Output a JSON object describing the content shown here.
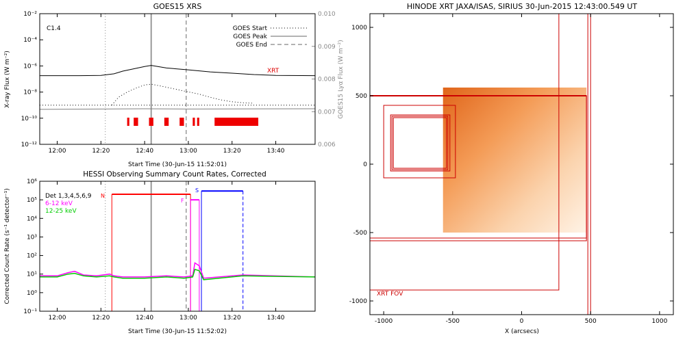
{
  "chart_data": [
    {
      "id": "goes",
      "type": "line",
      "title": "GOES15 XRS",
      "xlabel": "Start Time (30-Jun-15 11:52:01)",
      "ylabel": "X-ray Flux (W m⁻²)",
      "y2label": "GOES15 Lyα Flux (W m⁻²)",
      "xlim": [
        "11:52",
        "13:58"
      ],
      "ylim": [
        1e-12,
        0.01
      ],
      "yscale": "log",
      "y2lim": [
        0.006,
        0.01
      ],
      "xticks": [
        "12:00",
        "12:20",
        "12:40",
        "13:00",
        "13:20",
        "13:40"
      ],
      "yticks": [
        "10⁻¹²",
        "10⁻¹⁰",
        "10⁻⁸",
        "10⁻⁶",
        "10⁻⁴",
        "10⁻²"
      ],
      "y2ticks": [
        "0.006",
        "0.007",
        "0.008",
        "0.009",
        "0.010"
      ],
      "flare_class": "C1.4",
      "legend": [
        {
          "label": "GOES Start",
          "style": "dotted"
        },
        {
          "label": "GOES Peak",
          "style": "solid"
        },
        {
          "label": "GOES End",
          "style": "dashed"
        }
      ],
      "event_times": {
        "start": "12:22",
        "peak": "12:43",
        "end": "12:59"
      },
      "xrt_label": "XRT",
      "series": [
        {
          "name": "",
          "color": "#000000",
          "style": "solid",
          "x": [
            "11:52",
            "12:10",
            "12:20",
            "12:26",
            "12:30",
            "12:35",
            "12:40",
            "12:43",
            "12:46",
            "12:50",
            "13:00",
            "13:10",
            "13:20",
            "13:30",
            "13:40",
            "13:58"
          ],
          "values": [
            1.8e-07,
            1.8e-07,
            1.9e-07,
            2.5e-07,
            4e-07,
            6e-07,
            9e-07,
            1.1e-06,
            9e-07,
            7e-07,
            5e-07,
            3.5e-07,
            2.8e-07,
            2.2e-07,
            1.9e-07,
            1.8e-07
          ]
        },
        {
          "name": "",
          "color": "#000000",
          "style": "dotted",
          "x": [
            "12:25",
            "12:28",
            "12:32",
            "12:36",
            "12:40",
            "12:43",
            "12:47",
            "12:52",
            "12:58",
            "13:05",
            "13:10",
            "13:15",
            "13:20",
            "13:25",
            "13:30"
          ],
          "values": [
            1e-09,
            4e-09,
            1e-08,
            2e-08,
            3.5e-08,
            4e-08,
            3e-08,
            2e-08,
            1.2e-08,
            7e-09,
            4e-09,
            2.5e-09,
            1.8e-09,
            1.5e-09,
            1.4e-09
          ]
        },
        {
          "name": "",
          "color": "#000000",
          "style": "dotted",
          "x": [
            "11:52",
            "13:58"
          ],
          "values": [
            1e-09,
            1e-09
          ]
        },
        {
          "name": "",
          "color": "#808080",
          "style": "solid",
          "x": [
            "11:52",
            "12:40",
            "13:00",
            "13:58"
          ],
          "values": [
            0.00707,
            0.00709,
            0.00708,
            0.00709
          ]
        }
      ],
      "xrt_ranges": [
        [
          "12:32",
          "12:33"
        ],
        [
          "12:35",
          "12:37"
        ],
        [
          "12:42",
          "12:44"
        ],
        [
          "12:49",
          "12:51"
        ],
        [
          "12:56",
          "12:58"
        ],
        [
          "13:02",
          "13:03"
        ],
        [
          "13:04",
          "13:05"
        ],
        [
          "13:12",
          "13:32"
        ]
      ]
    },
    {
      "id": "hessi",
      "type": "line",
      "title": "HESSI Observing Summary Count Rates, Corrected",
      "xlabel": "Start Time (30-Jun-15 11:52:02)",
      "ylabel": "Corrected Count Rate (s⁻¹ detector⁻¹)",
      "xlim": [
        "11:52",
        "13:58"
      ],
      "ylim": [
        0.1,
        1000000
      ],
      "yscale": "log",
      "xticks": [
        "12:00",
        "12:20",
        "12:40",
        "13:00",
        "13:20",
        "13:40"
      ],
      "yticks": [
        "10⁻¹",
        "10⁰",
        "10¹",
        "10²",
        "10³",
        "10⁴",
        "10⁵",
        "10⁶"
      ],
      "legend": [
        {
          "label": "Det 1,3,4,5,6,9",
          "color": "#000000"
        },
        {
          "label": "6-12 keV",
          "color": "#ff00ff"
        },
        {
          "label": "12-25 keV",
          "color": "#00cc00"
        }
      ],
      "flags": {
        "N": "N",
        "F": "F",
        "S": "S"
      },
      "event_times": {
        "start": "12:22",
        "peak": "12:43",
        "end": "12:59"
      },
      "series": [
        {
          "name": "6-12 keV",
          "color": "#ff00ff",
          "x": [
            "11:52",
            "12:00",
            "12:05",
            "12:08",
            "12:12",
            "12:18",
            "12:24",
            "12:26",
            "12:30",
            "12:40",
            "12:50",
            "12:58",
            "13:02",
            "13:03",
            "13:05",
            "13:07",
            "13:25",
            "13:58"
          ],
          "values": [
            8,
            8,
            12,
            14,
            9,
            8,
            10,
            8,
            7,
            7,
            8,
            7,
            8,
            40,
            28,
            6,
            9,
            7
          ]
        },
        {
          "name": "12-25 keV",
          "color": "#00cc00",
          "x": [
            "11:52",
            "12:00",
            "12:05",
            "12:08",
            "12:12",
            "12:18",
            "12:24",
            "12:26",
            "12:30",
            "12:40",
            "12:50",
            "12:58",
            "13:02",
            "13:03",
            "13:05",
            "13:07",
            "13:25",
            "13:58"
          ],
          "values": [
            7,
            7,
            10,
            11,
            8,
            7,
            8,
            7,
            6,
            6,
            7,
            6,
            7,
            18,
            15,
            5,
            8,
            7
          ]
        }
      ],
      "state_lines": [
        {
          "flag": "N",
          "color": "#ff0000",
          "x": [
            "12:25",
            "13:01"
          ],
          "y": 200000
        },
        {
          "flag": "F",
          "color": "#ff00ff",
          "x": [
            "13:01",
            "13:05"
          ],
          "y": 100000
        },
        {
          "flag": "S",
          "color": "#0000ff",
          "x": [
            "13:06",
            "13:25"
          ],
          "y": 300000
        }
      ]
    },
    {
      "id": "xrt",
      "type": "scatter",
      "title": "HINODE XRT JAXA/ISAS, SIRIUS 30-Jun-2015 12:43:00.549 UT",
      "xlabel": "X (arcsecs)",
      "ylabel": "",
      "xlim": [
        -1100,
        1100
      ],
      "ylim": [
        -1100,
        1100
      ],
      "xticks": [
        "-1000",
        "-500",
        "0",
        "500",
        "1000"
      ],
      "yticks": [
        "-1000",
        "-500",
        "0",
        "500",
        "1000"
      ],
      "fov_label": "XRT FOV",
      "image_extent": {
        "x": [
          -570,
          470
        ],
        "y": [
          -500,
          560
        ]
      },
      "boxes": [
        {
          "x": [
            -1100,
            270
          ],
          "y": [
            -920,
            1100
          ]
        },
        {
          "x": [
            -1100,
            470
          ],
          "y": [
            -560,
            500
          ]
        },
        {
          "x": [
            -1100,
            470
          ],
          "y": [
            -540,
            500
          ]
        },
        {
          "x": [
            -1100,
            500
          ],
          "y": [
            -1100,
            1100
          ]
        },
        {
          "x": [
            -1100,
            480
          ],
          "y": [
            -1100,
            1100
          ]
        },
        {
          "x": [
            -1000,
            -480
          ],
          "y": [
            -100,
            430
          ]
        },
        {
          "x": [
            -950,
            -520
          ],
          "y": [
            -50,
            360
          ]
        },
        {
          "x": [
            -940,
            -535
          ],
          "y": [
            -40,
            350
          ]
        },
        {
          "x": [
            -930,
            -545
          ],
          "y": [
            -30,
            340
          ]
        }
      ]
    }
  ]
}
